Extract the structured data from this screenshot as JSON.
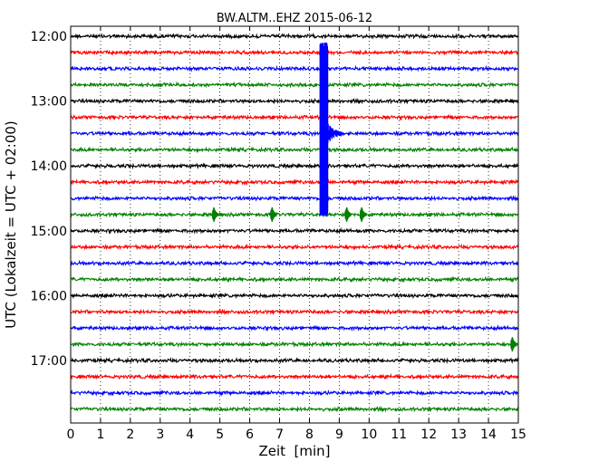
{
  "chart_data": {
    "type": "line",
    "title": "BW.ALTM..EHZ 2015-06-12",
    "xlabel": "Zeit  [min]",
    "ylabel": "UTC (Lokalzeit = UTC + 02:00)",
    "xlim": [
      0,
      15
    ],
    "x_ticks": [
      0,
      1,
      2,
      3,
      4,
      5,
      6,
      7,
      8,
      9,
      10,
      11,
      12,
      13,
      14,
      15
    ],
    "y_ticks": [
      "12:00",
      "13:00",
      "14:00",
      "15:00",
      "16:00",
      "17:00"
    ],
    "grid": "vertical dotted lines at each minute",
    "trace_colors": [
      "#000000",
      "#ff0000",
      "#0000ff",
      "#008000"
    ],
    "traces": [
      {
        "start": "12:00"
      },
      {
        "start": "12:15"
      },
      {
        "start": "12:30"
      },
      {
        "start": "12:45"
      },
      {
        "start": "13:00"
      },
      {
        "start": "13:15"
      },
      {
        "start": "13:30"
      },
      {
        "start": "13:45"
      },
      {
        "start": "14:00"
      },
      {
        "start": "14:15"
      },
      {
        "start": "14:30"
      },
      {
        "start": "14:45"
      },
      {
        "start": "15:00"
      },
      {
        "start": "15:15"
      },
      {
        "start": "15:30"
      },
      {
        "start": "15:45"
      },
      {
        "start": "16:00"
      },
      {
        "start": "16:15"
      },
      {
        "start": "16:30"
      },
      {
        "start": "16:45"
      },
      {
        "start": "17:00"
      },
      {
        "start": "17:15"
      },
      {
        "start": "17:30"
      },
      {
        "start": "17:45"
      }
    ],
    "events": [
      {
        "trace_start": "12:30",
        "minute": 8.45,
        "note": "large event onset, blue trace spans several rows"
      },
      {
        "trace_start": "13:30",
        "minute": 8.55,
        "note": "coda of large event"
      },
      {
        "trace_start": "14:45",
        "minute": 4.85,
        "note": "small event"
      },
      {
        "trace_start": "14:45",
        "minute": 6.8,
        "note": "small event"
      },
      {
        "trace_start": "14:45",
        "minute": 9.3,
        "note": "small event"
      },
      {
        "trace_start": "14:45",
        "minute": 9.8,
        "note": "small event"
      },
      {
        "trace_start": "16:45",
        "minute": 14.85,
        "note": "small event"
      }
    ]
  }
}
